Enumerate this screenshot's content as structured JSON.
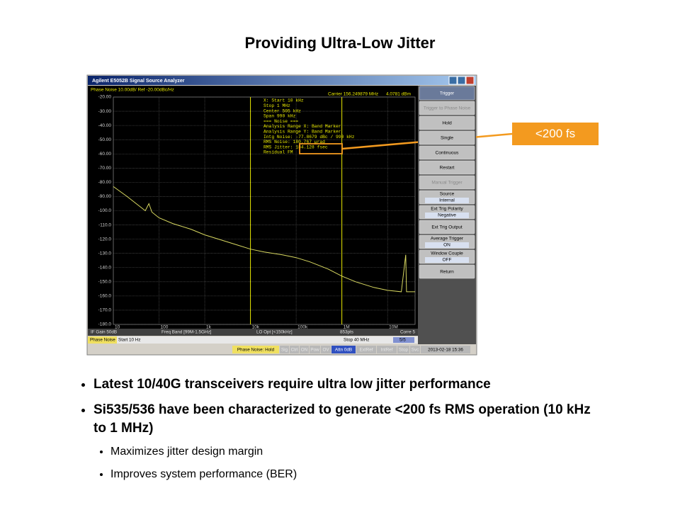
{
  "slide": {
    "title": "Providing Ultra-Low Jitter",
    "callout": "<200 fs",
    "bullets": [
      "Latest 10/40G transceivers require ultra low jitter performance",
      "Si535/536 have been characterized to generate <200 fs RMS operation (10 kHz to 1 MHz)"
    ],
    "sub_bullets": [
      "Maximizes jitter design margin",
      "Improves system performance (BER)"
    ]
  },
  "analyzer": {
    "window_title": "Agilent E5052B Signal Source Analyzer",
    "trace_header": "Phase Noise 10.00dB/ Ref -20.00dBc/Hz",
    "carrier": "Carrier 156.249879 MHz",
    "carrier_power": "4.0781 dBm",
    "readout": [
      "X: Start 10 kHz",
      "    Stop 1 MHz",
      "  Center 505 kHz",
      "    Span 990 kHz",
      "=== Noise ===",
      "Analysis Range X: Band Marker",
      "Analysis Range Y: Band Marker",
      "Intg Noise: -77.8679 dBc / 990 kHz",
      " RMS Noise: 180.767 µrad",
      "RMS Jitter: 184.128 fsec",
      "Residual FM"
    ],
    "softkeys": [
      {
        "label": "Trigger"
      },
      {
        "label": "Trigger to Phase Noise"
      },
      {
        "label": "Hold"
      },
      {
        "label": "Single"
      },
      {
        "label": "Continuous"
      },
      {
        "label": "Restart"
      },
      {
        "label": "Manual Trigger"
      },
      {
        "label": "Source",
        "value": "Internal"
      },
      {
        "label": "Ext Trig Polarity",
        "value": "Negative"
      },
      {
        "label": "Ext Trig Output"
      },
      {
        "label": "Average Trigger",
        "value": "ON"
      },
      {
        "label": "Window Couple",
        "value": "OFF"
      },
      {
        "label": "Return"
      }
    ],
    "status_row1": [
      "IF Gain 50dB",
      "Freq Band [99M-1.5GHz]",
      "LO Opt [<150kHz]",
      "853pts",
      "Corre 5"
    ],
    "status_row2": [
      "Phase Noise",
      "Start 10 Hz",
      "Stop 40 MHz",
      "5/5"
    ],
    "status_row3": [
      "Phase Noise: Hold",
      "Sig",
      "Ctrl",
      "ON",
      "Pow",
      "OV",
      "Attn 0dB",
      "ExtRef",
      "IntRef",
      "Stop",
      "Svc",
      "2013-02-18 15:36"
    ]
  },
  "chart_data": {
    "type": "line",
    "xscale": "log",
    "x": [
      10,
      20,
      50,
      60,
      70,
      100,
      200,
      500,
      1000,
      2000,
      5000,
      10000,
      20000,
      50000,
      100000,
      200000,
      500000,
      1000000,
      2000000,
      5000000,
      10000000,
      20000000,
      25000000,
      26000000,
      40000000
    ],
    "values": [
      -83,
      -90,
      -100,
      -95,
      -101,
      -105,
      -109,
      -113,
      -117,
      -120,
      -124,
      -127,
      -129,
      -131,
      -133,
      -136,
      -141,
      -146,
      -150,
      -154,
      -156,
      -157,
      -131,
      -157,
      -157
    ],
    "color": "#d8d860",
    "xlim": [
      10,
      40000000
    ],
    "ylim": [
      -180,
      -20
    ],
    "xticks": [
      {
        "value": 10,
        "label": "10"
      },
      {
        "value": 100,
        "label": "100"
      },
      {
        "value": 1000,
        "label": "1k"
      },
      {
        "value": 10000,
        "label": "10k"
      },
      {
        "value": 100000,
        "label": "100k"
      },
      {
        "value": 1000000,
        "label": "1M"
      },
      {
        "value": 10000000,
        "label": "10M"
      }
    ],
    "yticks": [
      {
        "value": -20,
        "label": "-20.00"
      },
      {
        "value": -30,
        "label": "-30.00"
      },
      {
        "value": -40,
        "label": "-40.00"
      },
      {
        "value": -50,
        "label": "-50.00"
      },
      {
        "value": -60,
        "label": "-60.00"
      },
      {
        "value": -70,
        "label": "-70.00"
      },
      {
        "value": -80,
        "label": "-80.00"
      },
      {
        "value": -90,
        "label": "-90.00"
      },
      {
        "value": -100,
        "label": "-100.0"
      },
      {
        "value": -110,
        "label": "-110.0"
      },
      {
        "value": -120,
        "label": "-120.0"
      },
      {
        "value": -130,
        "label": "-130.0"
      },
      {
        "value": -140,
        "label": "-140.0"
      },
      {
        "value": -150,
        "label": "-150.0"
      },
      {
        "value": -160,
        "label": "-160.0"
      },
      {
        "value": -170,
        "label": "-170.0"
      },
      {
        "value": -180,
        "label": "-180.0"
      }
    ],
    "grid": true,
    "markers": [
      10000,
      1000000
    ],
    "marker_color": "#e8e800"
  }
}
